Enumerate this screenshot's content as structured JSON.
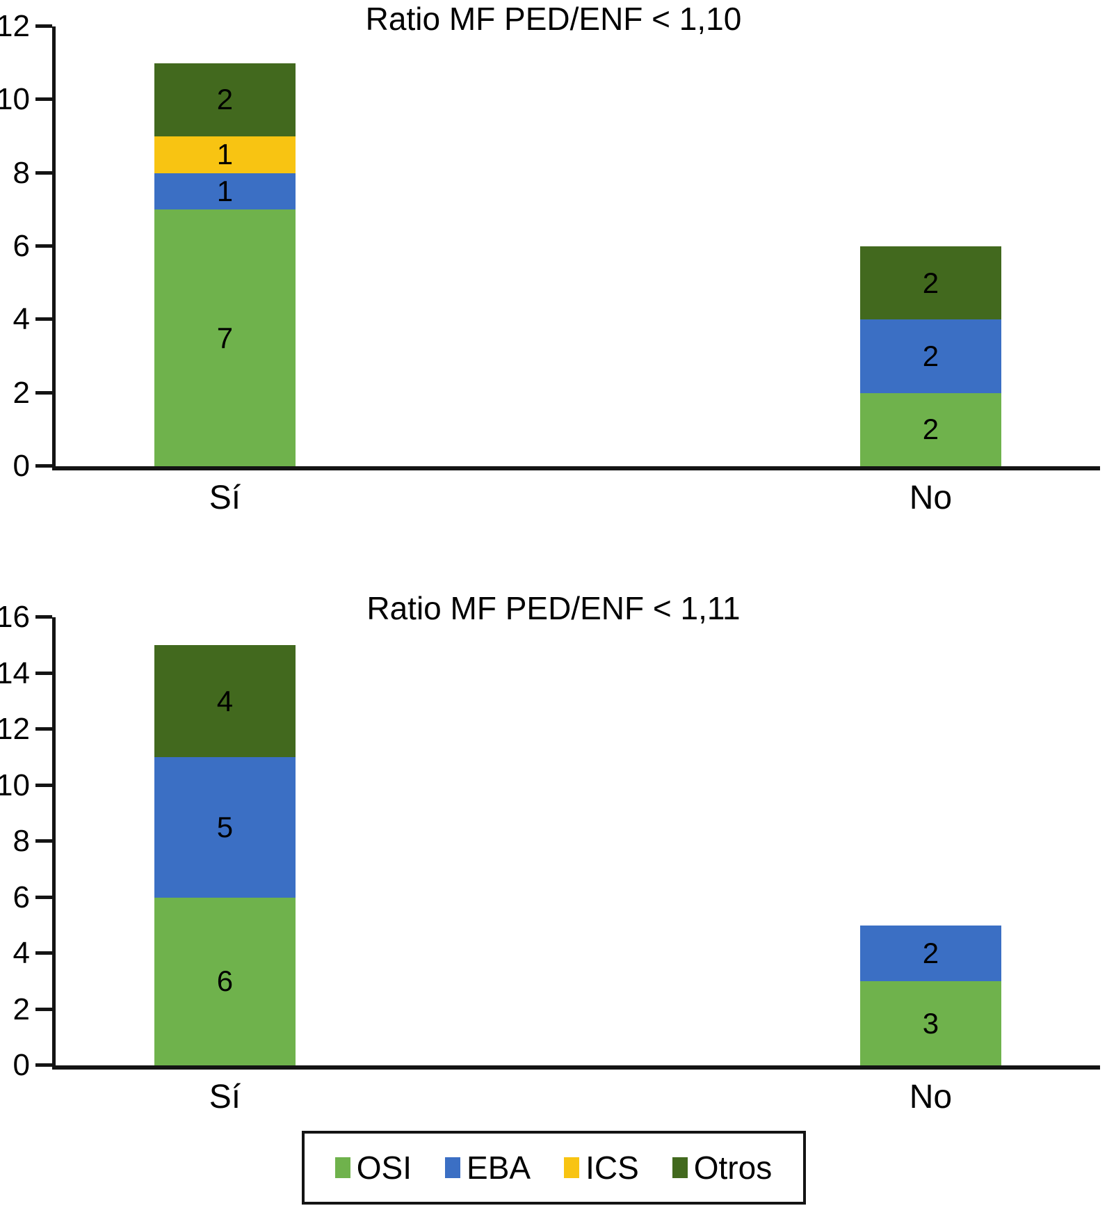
{
  "chart_data": [
    {
      "type": "bar",
      "stacked": true,
      "title": "Ratio MF PED/ENF < 1,10",
      "categories": [
        "Sí",
        "No"
      ],
      "series": [
        {
          "name": "OSI",
          "color": "#6FB24C",
          "values": [
            7,
            2
          ]
        },
        {
          "name": "EBA",
          "color": "#3B6FC4",
          "values": [
            1,
            2
          ]
        },
        {
          "name": "ICS",
          "color": "#F8C412",
          "values": [
            1,
            0
          ]
        },
        {
          "name": "Otros",
          "color": "#42691E",
          "values": [
            2,
            2
          ]
        }
      ],
      "totals": [
        11,
        6
      ],
      "ylim": [
        0,
        12
      ],
      "yticks": [
        0,
        2,
        4,
        6,
        8,
        10,
        12
      ],
      "grid": false,
      "xlabel": "",
      "ylabel": ""
    },
    {
      "type": "bar",
      "stacked": true,
      "title": "Ratio MF PED/ENF < 1,11",
      "categories": [
        "Sí",
        "No"
      ],
      "series": [
        {
          "name": "OSI",
          "color": "#6FB24C",
          "values": [
            6,
            3
          ]
        },
        {
          "name": "EBA",
          "color": "#3B6FC4",
          "values": [
            5,
            2
          ]
        },
        {
          "name": "ICS",
          "color": "#F8C412",
          "values": [
            0,
            0
          ]
        },
        {
          "name": "Otros",
          "color": "#42691E",
          "values": [
            4,
            0
          ]
        }
      ],
      "totals": [
        15,
        5
      ],
      "ylim": [
        0,
        16
      ],
      "yticks": [
        0,
        2,
        4,
        6,
        8,
        10,
        12,
        14,
        16
      ],
      "grid": false,
      "xlabel": "",
      "ylabel": ""
    }
  ],
  "legend": {
    "position": "bottom-center",
    "items": [
      {
        "label": "OSI",
        "color": "#6FB24C"
      },
      {
        "label": "EBA",
        "color": "#3B6FC4"
      },
      {
        "label": "ICS",
        "color": "#F8C412"
      },
      {
        "label": "Otros",
        "color": "#42691E"
      }
    ]
  },
  "colors": {
    "axis": "#141414",
    "text": "#000000",
    "background": "#FFFFFF"
  }
}
